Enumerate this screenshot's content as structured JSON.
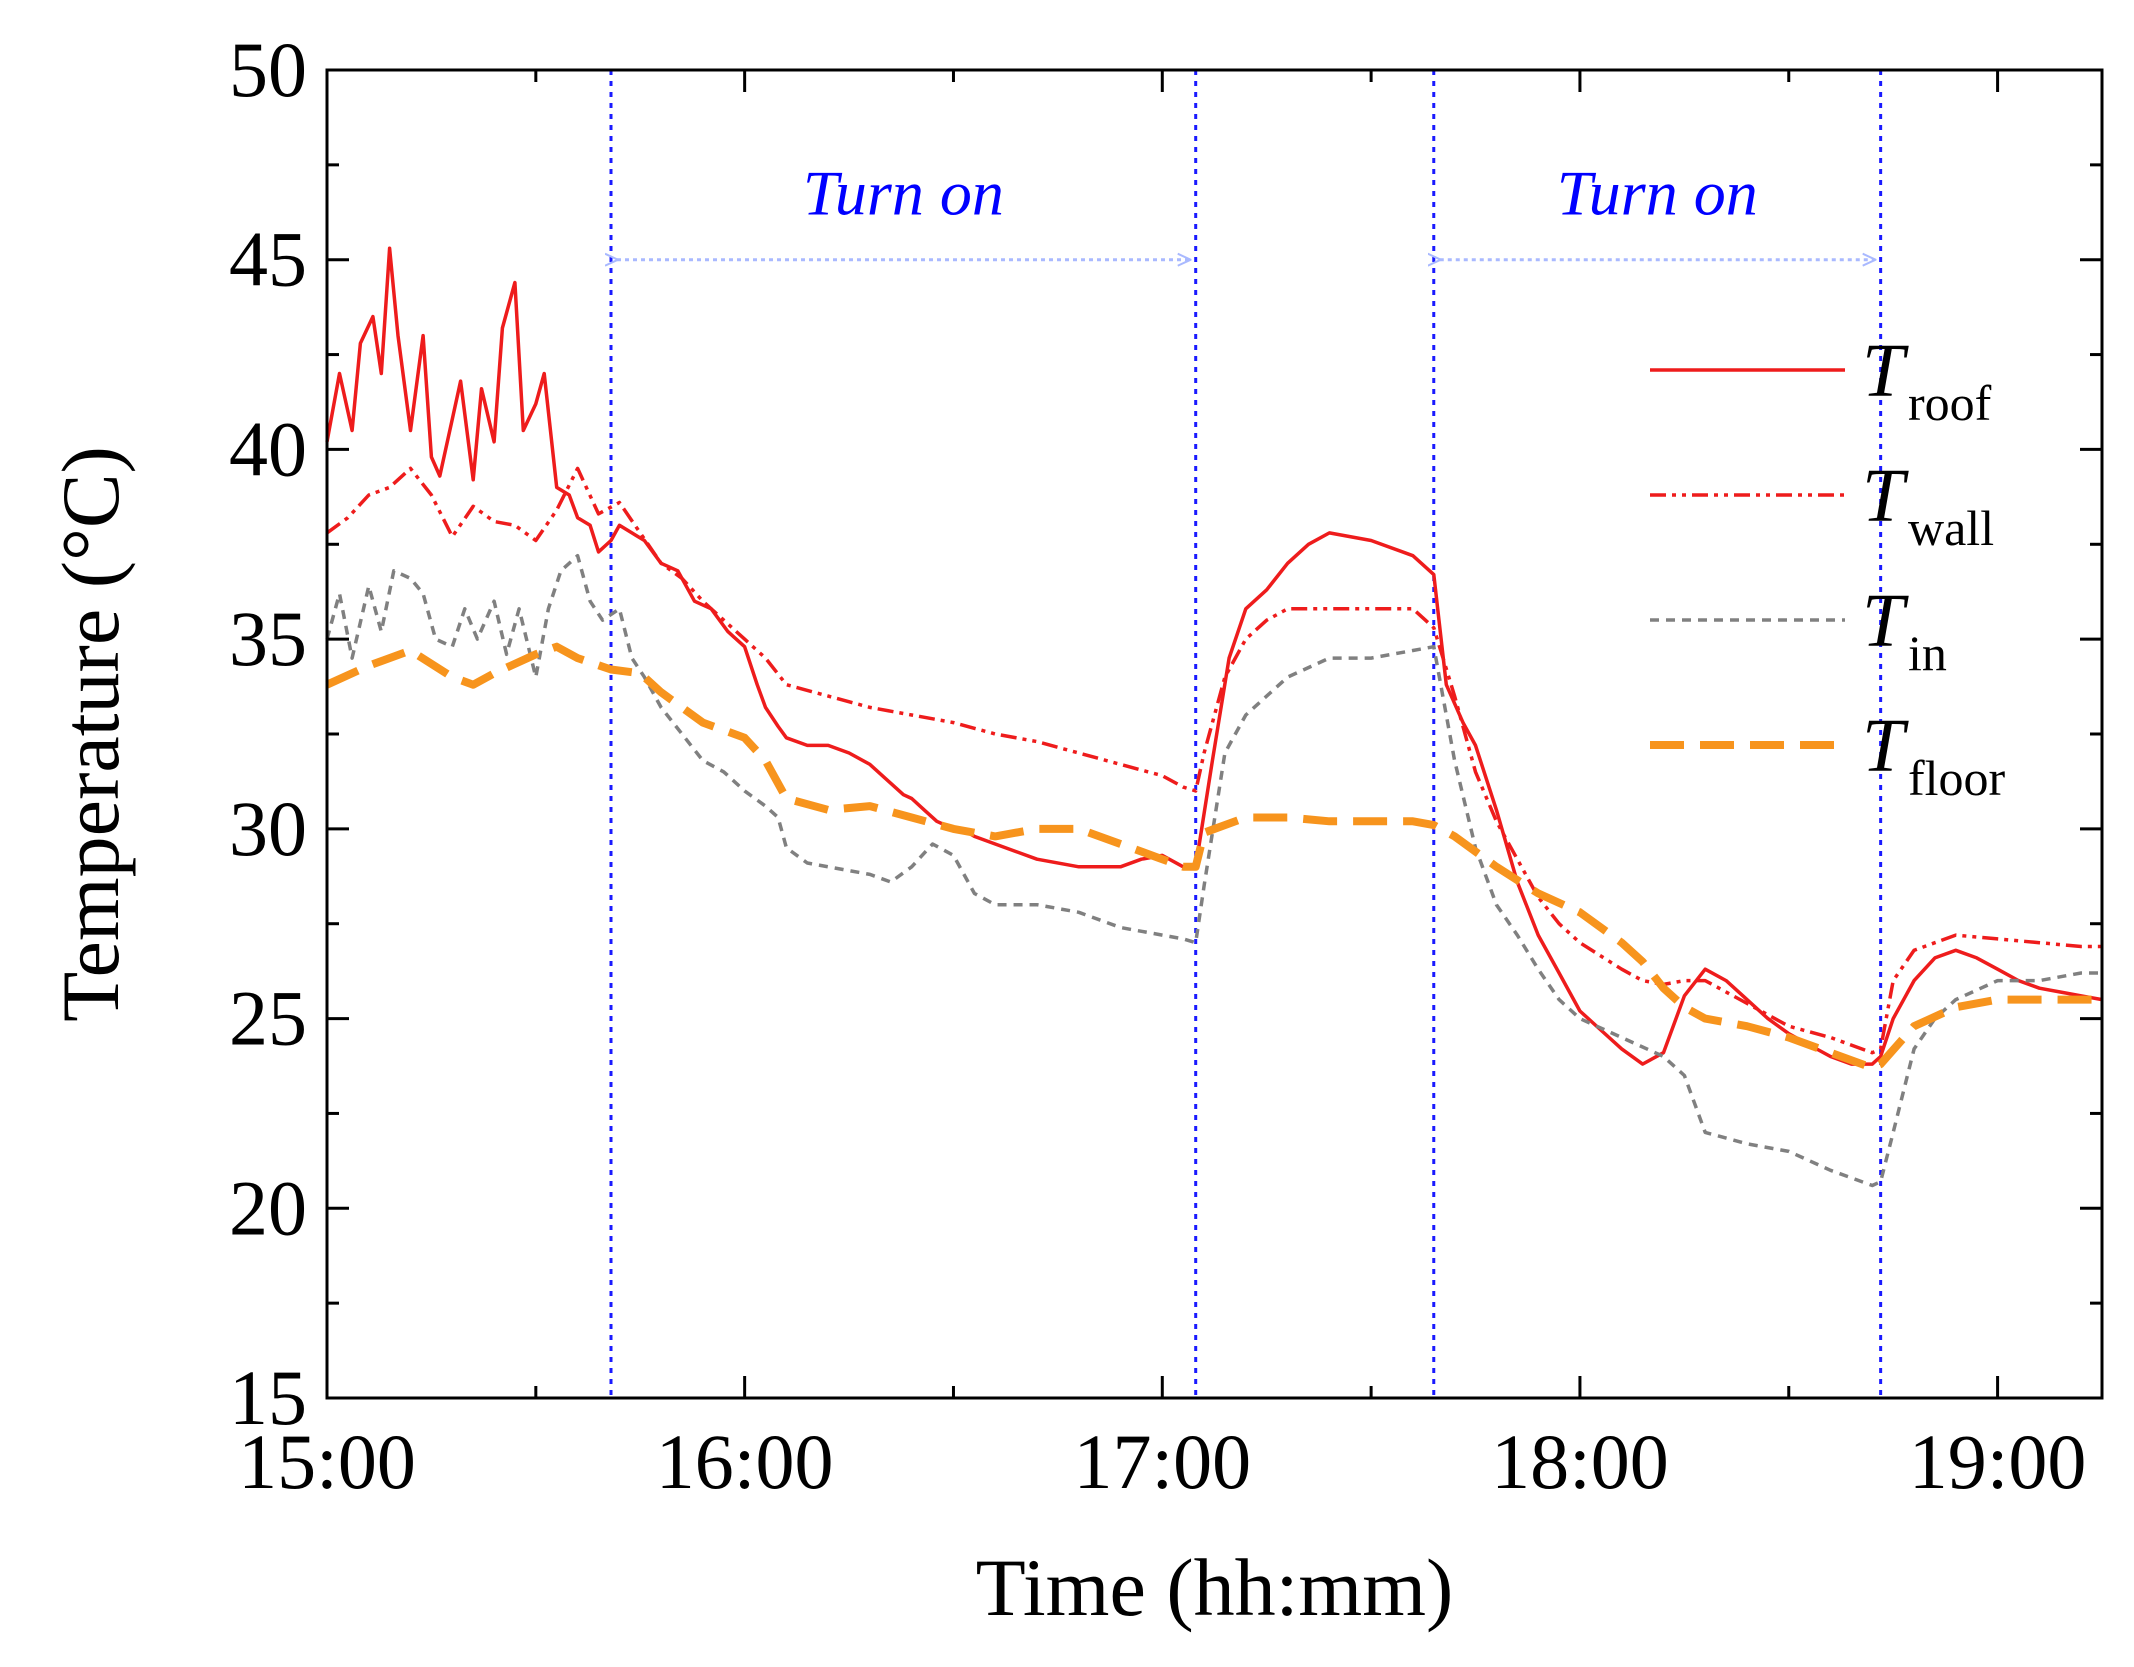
{
  "chart_data": {
    "type": "line",
    "xlabel": "Time (hh:mm)",
    "ylabel": "Temperature (°C)",
    "x_unit": "hours",
    "xlim": [
      15.0,
      19.25
    ],
    "ylim": [
      15,
      50
    ],
    "x_ticks": [
      {
        "value": 15.0,
        "label": "15:00"
      },
      {
        "value": 16.0,
        "label": "16:00"
      },
      {
        "value": 17.0,
        "label": "17:00"
      },
      {
        "value": 18.0,
        "label": "18:00"
      },
      {
        "value": 19.0,
        "label": "19:00"
      }
    ],
    "y_ticks": [
      {
        "value": 15,
        "label": "15"
      },
      {
        "value": 20,
        "label": "20"
      },
      {
        "value": 25,
        "label": "25"
      },
      {
        "value": 30,
        "label": "30"
      },
      {
        "value": 35,
        "label": "35"
      },
      {
        "value": 40,
        "label": "40"
      },
      {
        "value": 45,
        "label": "45"
      },
      {
        "value": 50,
        "label": "50"
      }
    ],
    "vertical_markers": [
      15.68,
      17.08,
      17.65,
      18.72
    ],
    "annotations": [
      {
        "text": "Turn on",
        "x_start": 15.68,
        "x_end": 17.08,
        "y": 45
      },
      {
        "text": "Turn on",
        "x_start": 17.65,
        "x_end": 18.72,
        "y": 45
      }
    ],
    "series": [
      {
        "name": "T",
        "subscript": "roof",
        "color": "#ee1c1c",
        "style": "solid",
        "x": [
          15.0,
          15.03,
          15.06,
          15.08,
          15.11,
          15.13,
          15.15,
          15.17,
          15.2,
          15.23,
          15.25,
          15.27,
          15.3,
          15.32,
          15.35,
          15.37,
          15.4,
          15.42,
          15.45,
          15.47,
          15.5,
          15.52,
          15.55,
          15.58,
          15.6,
          15.63,
          15.65,
          15.68,
          15.7,
          15.73,
          15.76,
          15.8,
          15.84,
          15.88,
          15.92,
          15.96,
          16.0,
          16.03,
          16.05,
          16.08,
          16.1,
          16.15,
          16.2,
          16.25,
          16.3,
          16.35,
          16.38,
          16.4,
          16.43,
          16.46,
          16.5,
          16.52,
          16.55,
          16.6,
          16.65,
          16.7,
          16.8,
          16.9,
          16.95,
          17.0,
          17.05,
          17.08,
          17.12,
          17.16,
          17.2,
          17.25,
          17.3,
          17.35,
          17.4,
          17.5,
          17.6,
          17.65,
          17.68,
          17.72,
          17.75,
          17.8,
          17.85,
          17.9,
          17.95,
          18.0,
          18.05,
          18.1,
          18.15,
          18.2,
          18.25,
          18.3,
          18.35,
          18.4,
          18.45,
          18.5,
          18.55,
          18.6,
          18.65,
          18.7,
          18.72,
          18.75,
          18.8,
          18.85,
          18.9,
          18.95,
          19.0,
          19.05,
          19.1,
          19.15,
          19.2,
          19.25
        ],
        "y": [
          40.2,
          42.0,
          40.5,
          42.8,
          43.5,
          42.0,
          45.3,
          43.0,
          40.5,
          43.0,
          39.8,
          39.3,
          40.8,
          41.8,
          39.2,
          41.6,
          40.2,
          43.2,
          44.4,
          40.5,
          41.2,
          42.0,
          39.0,
          38.8,
          38.2,
          38.0,
          37.3,
          37.6,
          38.0,
          37.8,
          37.6,
          37.0,
          36.8,
          36.0,
          35.8,
          35.2,
          34.8,
          33.8,
          33.2,
          32.7,
          32.4,
          32.2,
          32.2,
          32.0,
          31.7,
          31.2,
          30.9,
          30.8,
          30.5,
          30.2,
          30.0,
          30.0,
          29.8,
          29.6,
          29.4,
          29.2,
          29.0,
          29.0,
          29.2,
          29.3,
          29.0,
          29.0,
          31.8,
          34.5,
          35.8,
          36.3,
          37.0,
          37.5,
          37.8,
          37.6,
          37.2,
          36.7,
          33.8,
          32.8,
          32.2,
          30.5,
          28.6,
          27.2,
          26.2,
          25.2,
          24.7,
          24.2,
          23.8,
          24.1,
          25.6,
          26.3,
          26.0,
          25.5,
          25.0,
          24.6,
          24.3,
          24.0,
          23.8,
          23.8,
          24.0,
          25.0,
          26.0,
          26.6,
          26.8,
          26.6,
          26.3,
          26.0,
          25.8,
          25.7,
          25.6,
          25.5
        ]
      },
      {
        "name": "T",
        "subscript": "wall",
        "color": "#ee1c1c",
        "style": "dash-dot-dot",
        "x": [
          15.0,
          15.05,
          15.1,
          15.15,
          15.2,
          15.25,
          15.3,
          15.35,
          15.4,
          15.45,
          15.5,
          15.55,
          15.6,
          15.65,
          15.7,
          15.75,
          15.8,
          15.85,
          15.9,
          15.95,
          16.0,
          16.05,
          16.1,
          16.2,
          16.3,
          16.4,
          16.5,
          16.6,
          16.7,
          16.8,
          16.9,
          17.0,
          17.05,
          17.08,
          17.1,
          17.15,
          17.2,
          17.25,
          17.3,
          17.4,
          17.5,
          17.6,
          17.65,
          17.7,
          17.75,
          17.8,
          17.85,
          17.9,
          17.95,
          18.0,
          18.1,
          18.15,
          18.2,
          18.25,
          18.3,
          18.4,
          18.5,
          18.6,
          18.65,
          18.7,
          18.72,
          18.75,
          18.8,
          18.85,
          18.9,
          19.0,
          19.1,
          19.2,
          19.25
        ],
        "y": [
          37.8,
          38.2,
          38.8,
          39.0,
          39.5,
          38.8,
          37.7,
          38.5,
          38.1,
          38.0,
          37.6,
          38.4,
          39.5,
          38.3,
          38.6,
          37.8,
          37.0,
          36.6,
          36.0,
          35.5,
          35.0,
          34.5,
          33.8,
          33.5,
          33.2,
          33.0,
          32.8,
          32.5,
          32.3,
          32.0,
          31.7,
          31.4,
          31.1,
          31.0,
          32.0,
          34.0,
          35.0,
          35.5,
          35.8,
          35.8,
          35.8,
          35.8,
          35.3,
          33.5,
          31.5,
          30.2,
          29.2,
          28.2,
          27.5,
          27.0,
          26.3,
          26.0,
          25.9,
          26.0,
          26.0,
          25.4,
          24.8,
          24.5,
          24.3,
          24.1,
          24.2,
          26.0,
          26.8,
          27.0,
          27.2,
          27.1,
          27.0,
          26.9,
          26.9
        ]
      },
      {
        "name": "T",
        "subscript": "in",
        "color": "#808080",
        "style": "short-dash",
        "x": [
          15.0,
          15.03,
          15.06,
          15.1,
          15.13,
          15.16,
          15.2,
          15.23,
          15.26,
          15.3,
          15.33,
          15.36,
          15.4,
          15.43,
          15.46,
          15.5,
          15.53,
          15.56,
          15.6,
          15.63,
          15.66,
          15.7,
          15.73,
          15.76,
          15.8,
          15.85,
          15.9,
          15.95,
          16.0,
          16.05,
          16.08,
          16.1,
          16.15,
          16.2,
          16.3,
          16.35,
          16.4,
          16.45,
          16.5,
          16.55,
          16.6,
          16.7,
          16.8,
          16.9,
          17.0,
          17.05,
          17.08,
          17.1,
          17.15,
          17.2,
          17.3,
          17.4,
          17.5,
          17.6,
          17.65,
          17.7,
          17.75,
          17.8,
          17.85,
          17.9,
          17.95,
          18.0,
          18.1,
          18.2,
          18.25,
          18.3,
          18.4,
          18.5,
          18.6,
          18.65,
          18.7,
          18.72,
          18.75,
          18.8,
          18.85,
          18.9,
          19.0,
          19.1,
          19.2,
          19.25
        ],
        "y": [
          35.0,
          36.2,
          34.5,
          36.4,
          35.2,
          36.8,
          36.6,
          36.2,
          35.0,
          34.8,
          35.8,
          35.0,
          36.0,
          34.6,
          35.8,
          34.0,
          35.8,
          36.8,
          37.2,
          36.0,
          35.5,
          35.8,
          34.5,
          34.0,
          33.2,
          32.5,
          31.8,
          31.5,
          31.0,
          30.6,
          30.3,
          29.5,
          29.1,
          29.0,
          28.8,
          28.6,
          29.0,
          29.6,
          29.3,
          28.3,
          28.0,
          28.0,
          27.8,
          27.4,
          27.2,
          27.1,
          27.0,
          28.5,
          32.0,
          33.0,
          34.0,
          34.5,
          34.5,
          34.7,
          34.8,
          31.8,
          29.5,
          28.0,
          27.2,
          26.3,
          25.5,
          25.0,
          24.5,
          24.0,
          23.5,
          22.0,
          21.7,
          21.5,
          21.0,
          20.8,
          20.6,
          20.7,
          22.0,
          24.2,
          25.0,
          25.5,
          26.0,
          26.0,
          26.2,
          26.2
        ]
      },
      {
        "name": "T",
        "subscript": "floor",
        "color": "#f7941d",
        "style": "long-dash",
        "x": [
          15.0,
          15.1,
          15.2,
          15.3,
          15.35,
          15.4,
          15.5,
          15.55,
          15.6,
          15.68,
          15.75,
          15.8,
          15.9,
          15.95,
          16.0,
          16.05,
          16.1,
          16.2,
          16.3,
          16.4,
          16.5,
          16.6,
          16.7,
          16.8,
          16.9,
          17.0,
          17.05,
          17.08,
          17.1,
          17.2,
          17.3,
          17.4,
          17.5,
          17.6,
          17.65,
          17.7,
          17.8,
          17.9,
          18.0,
          18.1,
          18.15,
          18.2,
          18.25,
          18.3,
          18.4,
          18.5,
          18.6,
          18.7,
          18.72,
          18.8,
          18.9,
          19.0,
          19.1,
          19.2,
          19.25
        ],
        "y": [
          33.8,
          34.3,
          34.7,
          34.0,
          33.8,
          34.1,
          34.6,
          34.8,
          34.5,
          34.2,
          34.1,
          33.6,
          32.8,
          32.6,
          32.4,
          31.8,
          30.8,
          30.5,
          30.6,
          30.3,
          30.0,
          29.8,
          30.0,
          30.0,
          29.6,
          29.2,
          29.0,
          29.0,
          29.9,
          30.3,
          30.3,
          30.2,
          30.2,
          30.2,
          30.1,
          29.8,
          29.0,
          28.3,
          27.8,
          27.0,
          26.5,
          25.8,
          25.3,
          25.0,
          24.8,
          24.5,
          24.1,
          23.7,
          23.8,
          24.8,
          25.3,
          25.5,
          25.5,
          25.5,
          25.5
        ]
      }
    ]
  }
}
